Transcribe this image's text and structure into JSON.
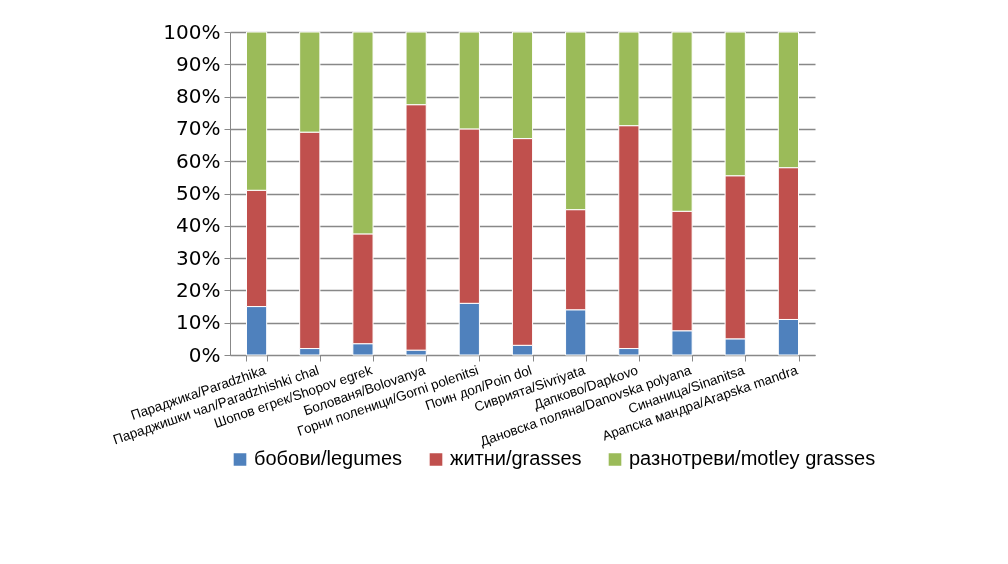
{
  "chart_data": {
    "type": "bar",
    "stacked": true,
    "categories": [
      "Параджика/Paradzhika",
      "Параджишки чал/Paradzhishki chal",
      "Шопов егрек/Shopov egrek",
      "Болованя/Bolovanya",
      "Горни поленици/Gorni polenitsi",
      "Поин дол/Poin dol",
      "Сиврията/Sivriyata",
      "Дапково/Dapkovo",
      "Дановска поляна/Danovska polyana",
      "Синаница/Sinanitsa",
      "Арапска мандра/Arapska mandra"
    ],
    "series": [
      {
        "name": "бобови/legumes",
        "color": "#4f81bd",
        "values": [
          15,
          2,
          3.5,
          1.5,
          16,
          3,
          14,
          2,
          7.5,
          5,
          11
        ]
      },
      {
        "name": "житни/grasses",
        "color": "#c0504d",
        "values": [
          36,
          67,
          34,
          76,
          54,
          64,
          31,
          69,
          37,
          50.5,
          47
        ]
      },
      {
        "name": "разнотреви/motley grasses",
        "color": "#9bbb59",
        "values": [
          49,
          31,
          62.5,
          22.5,
          30,
          33,
          55,
          29,
          55.5,
          44.5,
          42
        ]
      }
    ],
    "ylim": [
      0,
      100
    ],
    "yticks": [
      {
        "value": 0,
        "label": "0%"
      },
      {
        "value": 10,
        "label": "10%"
      },
      {
        "value": 20,
        "label": "20%"
      },
      {
        "value": 30,
        "label": "30%"
      },
      {
        "value": 40,
        "label": "40%"
      },
      {
        "value": 50,
        "label": "50%"
      },
      {
        "value": 60,
        "label": "60%"
      },
      {
        "value": 70,
        "label": "70%"
      },
      {
        "value": 80,
        "label": "80%"
      },
      {
        "value": 90,
        "label": "90%"
      },
      {
        "value": 100,
        "label": "100%"
      }
    ],
    "grid": "y",
    "legend": "bottom"
  }
}
